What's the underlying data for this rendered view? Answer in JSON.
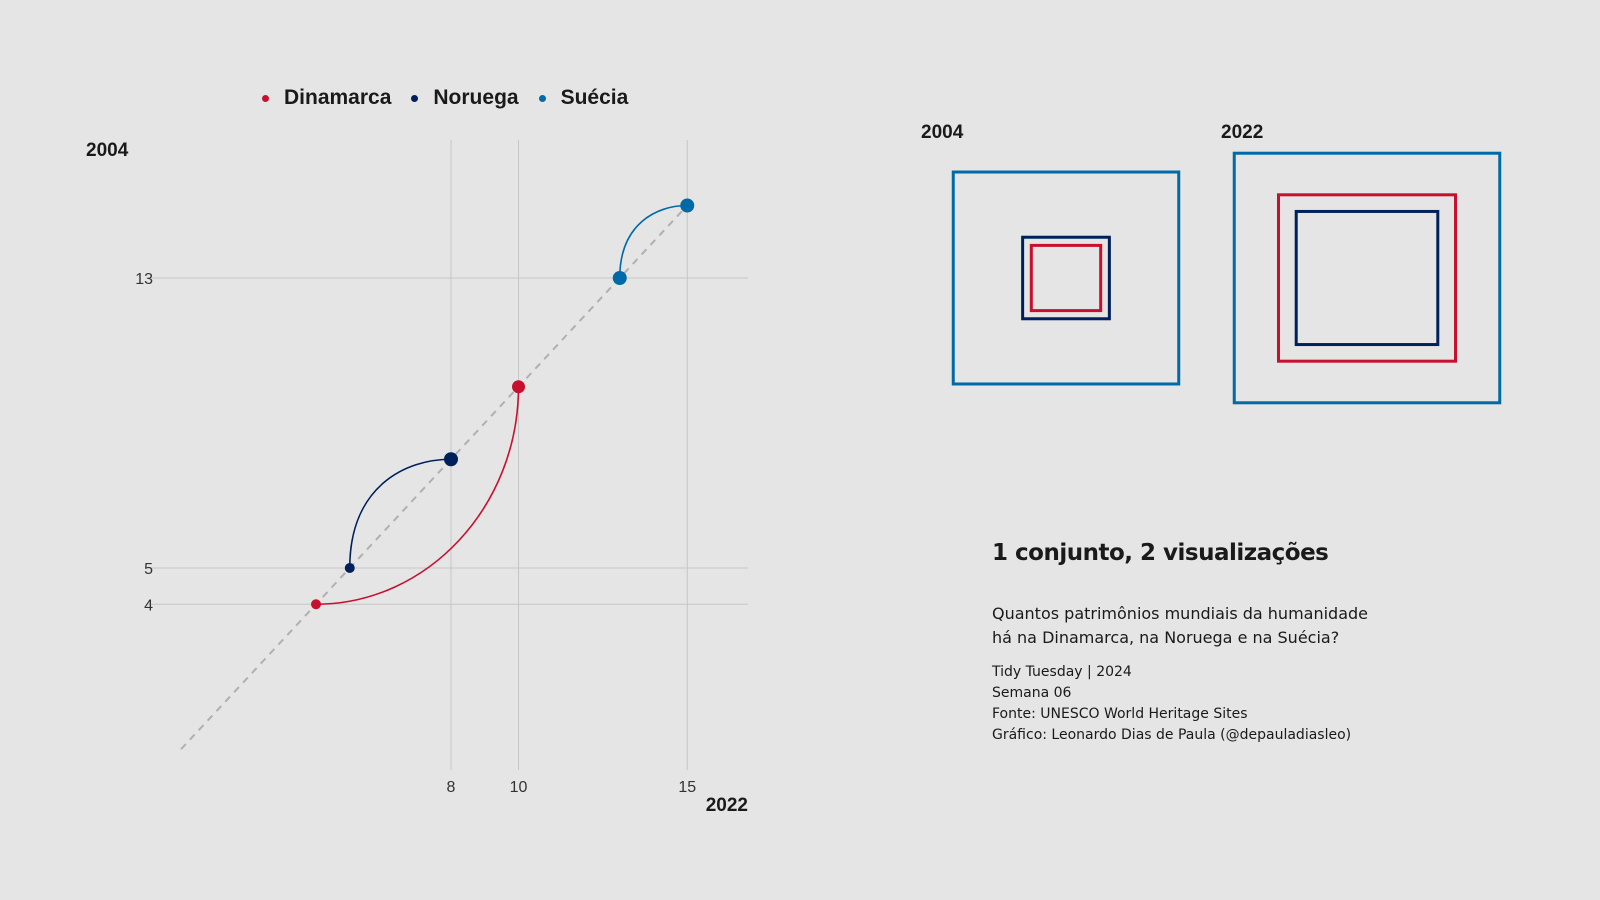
{
  "legend": [
    {
      "label": "Dinamarca",
      "color": "#c8102e"
    },
    {
      "label": "Noruega",
      "color": "#00205b"
    },
    {
      "label": "Suécia",
      "color": "#006aa7"
    }
  ],
  "chart_data": [
    {
      "type": "scatter",
      "title": "",
      "xlabel": "2022",
      "ylabel": "2004",
      "x_ticks": [
        8,
        10,
        15
      ],
      "y_ticks": [
        4,
        5,
        13
      ],
      "xlim": [
        2,
        17
      ],
      "ylim": [
        0,
        17
      ],
      "reference_line": "y = x (dashed)",
      "series": [
        {
          "name": "Dinamarca",
          "color": "#c8102e",
          "x_2004": 4,
          "y_2004": 4,
          "x_2022": 10,
          "y_2022": 10
        },
        {
          "name": "Noruega",
          "color": "#00205b",
          "x_2004": 5,
          "y_2004": 5,
          "x_2022": 8,
          "y_2022": 8
        },
        {
          "name": "Suécia",
          "color": "#006aa7",
          "x_2004": 13,
          "y_2004": 13,
          "x_2022": 15,
          "y_2022": 15
        }
      ]
    },
    {
      "type": "nested-squares",
      "panels": [
        {
          "label": "2004",
          "values": {
            "Suécia": 13,
            "Noruega": 5,
            "Dinamarca": 4
          }
        },
        {
          "label": "2022",
          "values": {
            "Suécia": 15,
            "Dinamarca": 10,
            "Noruega": 8
          }
        }
      ]
    }
  ],
  "caption": {
    "title": "1 conjunto, 2 visualizações",
    "question": "Quantos patrimônios mundiais da humanidade há na Dinamarca, na Noruega e na Suécia?",
    "credits": [
      "Tidy Tuesday | 2024",
      "Semana 06",
      "Fonte: UNESCO World Heritage Sites",
      "Gráfico: Leonardo Dias de Paula (@depauladiasleo)"
    ]
  }
}
